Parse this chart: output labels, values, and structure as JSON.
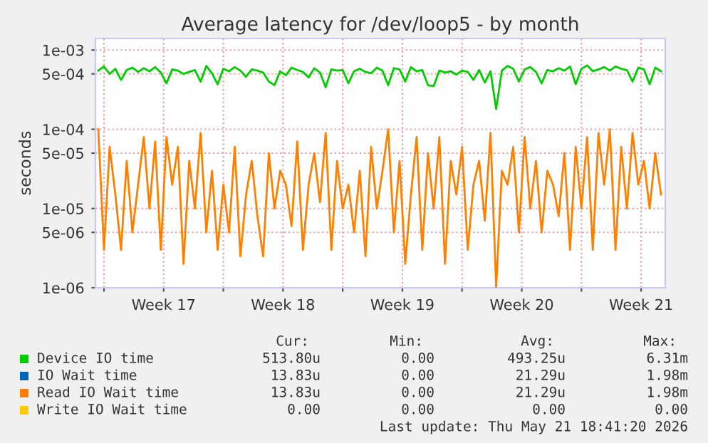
{
  "chart_data": {
    "type": "line",
    "title": "Average latency for /dev/loop5 - by month",
    "ylabel": "seconds",
    "x": [
      "2026-04-19T16:00",
      "2026-04-20T00:00",
      "2026-04-20T08:00",
      "2026-04-20T16:00",
      "2026-04-21T00:00",
      "2026-04-21T08:00",
      "2026-04-21T16:00",
      "2026-04-22T00:00",
      "2026-04-22T08:00",
      "2026-04-22T16:00",
      "2026-04-23T00:00",
      "2026-04-23T08:00",
      "2026-04-23T16:00",
      "2026-04-24T00:00",
      "2026-04-24T08:00",
      "2026-04-24T16:00",
      "2026-04-25T00:00",
      "2026-04-25T08:00",
      "2026-04-25T16:00",
      "2026-04-26T00:00",
      "2026-04-26T08:00",
      "2026-04-26T16:00",
      "2026-04-27T00:00",
      "2026-04-27T08:00",
      "2026-04-27T16:00",
      "2026-04-28T00:00",
      "2026-04-28T08:00",
      "2026-04-28T16:00",
      "2026-04-29T00:00",
      "2026-04-29T08:00",
      "2026-04-29T16:00",
      "2026-04-30T00:00",
      "2026-04-30T08:00",
      "2026-04-30T16:00",
      "2026-05-01T00:00",
      "2026-05-01T08:00",
      "2026-05-01T16:00",
      "2026-05-02T00:00",
      "2026-05-02T08:00",
      "2026-05-02T16:00",
      "2026-05-03T00:00",
      "2026-05-03T08:00",
      "2026-05-03T16:00",
      "2026-05-04T00:00",
      "2026-05-04T08:00",
      "2026-05-04T16:00",
      "2026-05-05T00:00",
      "2026-05-05T08:00",
      "2026-05-05T16:00",
      "2026-05-06T00:00",
      "2026-05-06T08:00",
      "2026-05-06T16:00",
      "2026-05-07T00:00",
      "2026-05-07T08:00",
      "2026-05-07T16:00",
      "2026-05-08T00:00",
      "2026-05-08T08:00",
      "2026-05-08T16:00",
      "2026-05-09T00:00",
      "2026-05-09T08:00",
      "2026-05-09T16:00",
      "2026-05-10T00:00",
      "2026-05-10T08:00",
      "2026-05-10T16:00",
      "2026-05-11T00:00",
      "2026-05-11T08:00",
      "2026-05-11T16:00",
      "2026-05-12T00:00",
      "2026-05-12T08:00",
      "2026-05-12T16:00",
      "2026-05-13T00:00",
      "2026-05-13T08:00",
      "2026-05-13T16:00",
      "2026-05-14T00:00",
      "2026-05-14T08:00",
      "2026-05-14T16:00",
      "2026-05-15T00:00",
      "2026-05-15T08:00",
      "2026-05-15T16:00",
      "2026-05-16T00:00",
      "2026-05-16T08:00",
      "2026-05-16T16:00",
      "2026-05-17T00:00",
      "2026-05-17T08:00",
      "2026-05-17T16:00",
      "2026-05-18T00:00",
      "2026-05-18T08:00",
      "2026-05-18T16:00",
      "2026-05-19T00:00",
      "2026-05-19T08:00",
      "2026-05-19T16:00",
      "2026-05-20T00:00",
      "2026-05-20T08:00",
      "2026-05-20T16:00",
      "2026-05-21T00:00",
      "2026-05-21T08:00",
      "2026-05-21T16:00",
      "2026-05-22T00:00",
      "2026-05-22T08:00",
      "2026-05-22T16:00"
    ],
    "series": [
      {
        "name": "Device IO time",
        "color": "#00cc00",
        "values": [
          0.00055,
          0.00062,
          0.0005,
          0.00058,
          0.00042,
          0.00056,
          0.0006,
          0.00053,
          0.00059,
          0.00054,
          0.00061,
          0.00052,
          0.00038,
          0.00057,
          0.00055,
          0.0005,
          0.00053,
          0.00056,
          0.0004,
          0.00063,
          0.00051,
          0.00037,
          0.00058,
          0.00054,
          0.00061,
          0.00055,
          0.00046,
          0.00057,
          0.00055,
          0.00052,
          0.0004,
          0.00036,
          0.00054,
          0.00048,
          0.0006,
          0.00056,
          0.00053,
          0.00045,
          0.00059,
          0.00052,
          0.00034,
          0.00057,
          0.00055,
          0.00056,
          0.00038,
          0.00054,
          0.00058,
          0.00053,
          0.00051,
          0.0006,
          0.00055,
          0.00036,
          0.00059,
          0.00057,
          0.0004,
          0.00061,
          0.00054,
          0.00056,
          0.00036,
          0.00035,
          0.00055,
          0.00052,
          0.00054,
          0.00049,
          0.00055,
          0.00053,
          0.00042,
          0.00056,
          0.00039,
          0.00054,
          0.00018,
          0.00055,
          0.00063,
          0.00058,
          0.0004,
          0.00057,
          0.00061,
          0.00053,
          0.00038,
          0.00056,
          0.00054,
          0.00059,
          0.00055,
          0.00062,
          0.00037,
          0.00058,
          0.00064,
          0.00054,
          0.00057,
          0.00061,
          0.00055,
          0.00062,
          0.00058,
          0.00056,
          0.0004,
          0.0006,
          0.00057,
          0.00037,
          0.0006,
          0.00054
        ]
      },
      {
        "name": "IO Wait time",
        "color": "#0066b3",
        "values": [
          null,
          null,
          null,
          null,
          null,
          null,
          null,
          null,
          null,
          null,
          null,
          null,
          null,
          null,
          null,
          null,
          null,
          null,
          null,
          null,
          null,
          null,
          null,
          null,
          null,
          null,
          null,
          null,
          null,
          null,
          null,
          null,
          null,
          null,
          null,
          null,
          null,
          null,
          null,
          null,
          null,
          null,
          null,
          null,
          null,
          null,
          null,
          null,
          null,
          null,
          null,
          null,
          null,
          null,
          null,
          null,
          null,
          null,
          null,
          null,
          null,
          null,
          null,
          null,
          null,
          null,
          null,
          null,
          null,
          null,
          null,
          null,
          null,
          null,
          null,
          null,
          null,
          null,
          null,
          null,
          null,
          null,
          null,
          null,
          null,
          null,
          null,
          null,
          null,
          null,
          null,
          null,
          null,
          null,
          null,
          null,
          null,
          null,
          null,
          null
        ]
      },
      {
        "name": "Read IO Wait time",
        "color": "#ff8000",
        "values": [
          0.0001,
          3e-06,
          6e-05,
          1.5e-05,
          3e-06,
          4e-05,
          5e-06,
          2e-05,
          8e-05,
          1e-05,
          7e-05,
          3e-06,
          8e-05,
          2e-05,
          6e-05,
          2e-06,
          4e-05,
          1e-05,
          9e-05,
          5e-06,
          3e-05,
          3e-06,
          2e-05,
          5e-06,
          6e-05,
          2.5e-06,
          1.5e-05,
          4e-05,
          8e-06,
          2.5e-06,
          5e-05,
          1e-05,
          3e-05,
          2e-05,
          6e-06,
          7e-05,
          3e-06,
          2e-05,
          5e-05,
          1.2e-05,
          9e-05,
          3e-06,
          4e-05,
          1e-05,
          2e-05,
          5e-06,
          3e-05,
          2.5e-06,
          6e-05,
          1e-05,
          3e-05,
          0.0001,
          5e-06,
          4e-05,
          2e-06,
          1.5e-05,
          8e-05,
          3e-06,
          5e-05,
          1e-05,
          8e-05,
          2e-06,
          4e-05,
          1.5e-05,
          6e-05,
          3e-06,
          2e-05,
          4e-05,
          7e-06,
          9e-05,
          1e-06,
          3e-05,
          2e-05,
          6e-05,
          5e-06,
          8e-05,
          1e-05,
          4e-05,
          5e-06,
          3e-05,
          2e-05,
          8e-06,
          5e-05,
          3e-06,
          6e-05,
          1e-05,
          8e-05,
          3e-06,
          9e-05,
          2e-05,
          0.0001,
          3e-06,
          6e-05,
          1e-05,
          9e-05,
          2e-05,
          4e-05,
          1e-05,
          5e-05,
          1.5e-05
        ]
      },
      {
        "name": "Write IO Wait time",
        "color": "#ffcc00",
        "values": [
          null,
          null,
          null,
          null,
          null,
          null,
          null,
          null,
          null,
          null,
          null,
          null,
          null,
          null,
          null,
          null,
          null,
          null,
          null,
          null,
          null,
          null,
          null,
          null,
          null,
          null,
          null,
          null,
          null,
          null,
          null,
          null,
          null,
          null,
          null,
          null,
          null,
          null,
          null,
          null,
          null,
          null,
          null,
          null,
          null,
          null,
          null,
          null,
          null,
          null,
          null,
          null,
          null,
          null,
          null,
          null,
          null,
          null,
          null,
          null,
          null,
          null,
          null,
          null,
          null,
          null,
          null,
          null,
          null,
          null,
          null,
          null,
          null,
          null,
          null,
          null,
          null,
          null,
          null,
          null,
          null,
          null,
          null,
          null,
          null,
          null,
          null,
          null,
          null,
          null,
          null,
          null,
          null,
          null,
          null,
          null,
          null,
          null,
          null,
          null
        ]
      }
    ],
    "log": "y",
    "ylim": [
      1e-06,
      0.0014
    ],
    "yticks": [
      {
        "value": 1e-06,
        "label": "1e-06"
      },
      {
        "value": 5e-06,
        "label": "5e-06"
      },
      {
        "value": 1e-05,
        "label": "1e-05"
      },
      {
        "value": 5e-05,
        "label": "5e-05"
      },
      {
        "value": 0.0001,
        "label": "1e-04"
      },
      {
        "value": 0.0005,
        "label": "5e-04"
      },
      {
        "value": 0.001,
        "label": "1e-03"
      }
    ],
    "xlim": [
      "2026-04-19T12:00",
      "2026-05-22T22:00"
    ],
    "xticks": [
      {
        "value": "2026-04-20",
        "label": null
      },
      {
        "value": "2026-04-23T12:00",
        "label": "Week 17"
      },
      {
        "value": "2026-04-27",
        "label": null
      },
      {
        "value": "2026-04-30T12:00",
        "label": "Week 18"
      },
      {
        "value": "2026-05-04",
        "label": null
      },
      {
        "value": "2026-05-07T12:00",
        "label": "Week 19"
      },
      {
        "value": "2026-05-11",
        "label": null
      },
      {
        "value": "2026-05-14T12:00",
        "label": "Week 20"
      },
      {
        "value": "2026-05-18",
        "label": null
      },
      {
        "value": "2026-05-21T12:00",
        "label": "Week 21"
      }
    ],
    "grid": true,
    "legend": "bottom",
    "annotations": [
      "Cur:",
      "Min:",
      "Avg:",
      "Max:",
      "513.80u",
      "0.00",
      "493.25u",
      "6.31m",
      "13.83u",
      "0.00",
      "21.29u",
      "1.98m",
      "13.83u",
      "0.00",
      "21.29u",
      "1.98m",
      "0.00",
      "0.00",
      "0.00",
      "0.00",
      "Last update: Thu May 21 18:41:20 2026"
    ]
  }
}
